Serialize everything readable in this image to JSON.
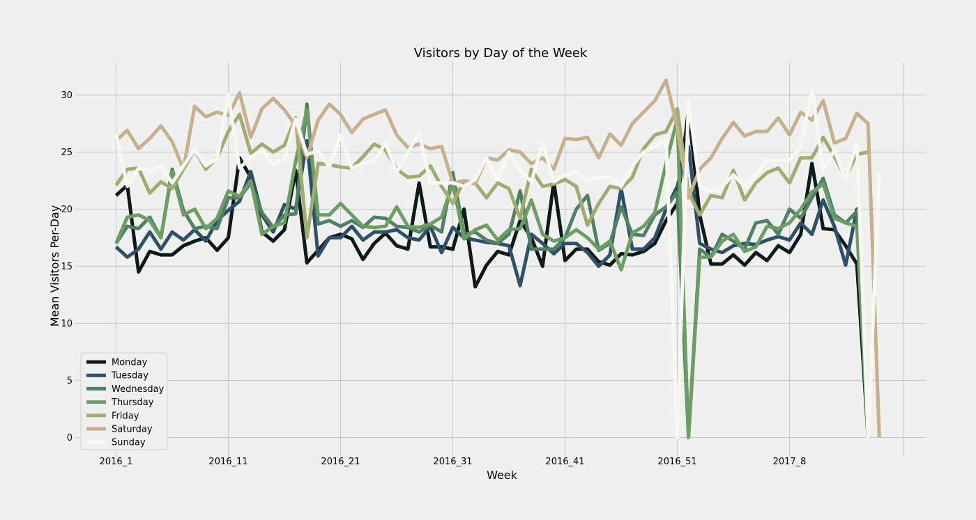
{
  "chart_data": {
    "type": "line",
    "title": "Visitors by Day of the Week",
    "xlabel": "Week",
    "ylabel": "Mean Visitors Per-Day",
    "ylim": [
      -1.5,
      32.5
    ],
    "yticks": [
      0,
      5,
      10,
      15,
      20,
      25,
      30
    ],
    "grid": true,
    "legend_position": "bottom-left",
    "x_ticks": [
      {
        "index": 0,
        "label": "2016_1"
      },
      {
        "index": 10,
        "label": "2016_11"
      },
      {
        "index": 20,
        "label": "2016_21"
      },
      {
        "index": 30,
        "label": "2016_31"
      },
      {
        "index": 40,
        "label": "2016_41"
      },
      {
        "index": 50,
        "label": "2016_51"
      },
      {
        "index": 60,
        "label": "2017_8"
      }
    ],
    "x_extra_grid": [
      70
    ],
    "x_range": [
      -3,
      72.5
    ],
    "series": [
      {
        "name": "Monday",
        "color": "#0d1a16",
        "values": [
          21.2,
          22.1,
          14.5,
          16.3,
          16.0,
          16.0,
          16.8,
          17.2,
          17.5,
          16.4,
          17.5,
          24.5,
          22.8,
          18.0,
          17.2,
          18.2,
          23.4,
          15.3,
          16.4,
          17.5,
          17.8,
          17.4,
          15.6,
          17.0,
          17.9,
          16.8,
          16.5,
          22.3,
          16.7,
          16.7,
          16.5,
          20.0,
          13.2,
          15.1,
          16.3,
          16.0,
          19.0,
          17.5,
          15.0,
          22.4,
          15.5,
          16.5,
          16.5,
          15.4,
          15.1,
          16.1,
          16.0,
          16.3,
          17.0,
          19.0,
          20.5,
          28.7,
          19.5,
          15.2,
          15.2,
          16.0,
          15.1,
          16.2,
          15.5,
          16.8,
          16.2,
          17.8,
          24.0,
          18.3,
          18.2,
          16.8,
          15.2,
          0.0
        ]
      },
      {
        "name": "Tuesday",
        "color": "#2e5068",
        "values": [
          16.7,
          15.8,
          16.5,
          18.0,
          16.5,
          18.0,
          17.3,
          18.2,
          17.2,
          19.0,
          19.9,
          20.7,
          23.3,
          19.5,
          18.0,
          20.4,
          20.0,
          26.0,
          15.9,
          17.5,
          17.5,
          18.5,
          17.3,
          18.0,
          18.0,
          18.2,
          17.5,
          17.3,
          18.5,
          16.2,
          18.4,
          17.5,
          17.3,
          17.1,
          17.0,
          16.8,
          13.3,
          17.8,
          17.0,
          16.1,
          17.0,
          17.0,
          16.2,
          15.0,
          16.0,
          21.8,
          16.5,
          16.5,
          17.5,
          20.0,
          22.0,
          25.5,
          17.0,
          16.5,
          16.2,
          16.8,
          17.0,
          16.9,
          17.3,
          17.6,
          17.3,
          18.8,
          17.8,
          20.8,
          18.5,
          15.1,
          20.0,
          0.0
        ]
      },
      {
        "name": "Wednesday",
        "color": "#4f8264",
        "values": [
          17.0,
          18.5,
          18.3,
          19.3,
          17.5,
          23.5,
          19.9,
          18.3,
          18.5,
          18.3,
          21.0,
          21.0,
          22.3,
          19.7,
          18.4,
          19.5,
          19.6,
          29.2,
          18.7,
          19.0,
          18.5,
          19.0,
          18.4,
          19.3,
          19.2,
          18.5,
          18.4,
          18.0,
          18.6,
          18.0,
          23.2,
          17.8,
          18.0,
          17.3,
          17.0,
          17.8,
          21.6,
          16.5,
          16.5,
          16.5,
          17.5,
          20.0,
          21.2,
          16.4,
          17.0,
          20.2,
          17.8,
          17.7,
          19.5,
          20.2,
          21.5,
          0.0,
          16.5,
          15.8,
          17.8,
          17.2,
          16.5,
          18.8,
          19.0,
          17.8,
          20.0,
          19.2,
          21.0,
          22.7,
          19.5,
          18.8,
          19.8,
          0.0
        ]
      },
      {
        "name": "Thursday",
        "color": "#6c9e64",
        "values": [
          17.0,
          19.3,
          19.5,
          19.0,
          17.5,
          23.3,
          19.5,
          20.0,
          18.3,
          19.2,
          21.6,
          21.1,
          22.5,
          17.8,
          18.5,
          18.8,
          24.2,
          28.7,
          19.5,
          19.5,
          20.5,
          19.5,
          18.5,
          18.4,
          18.5,
          20.2,
          18.5,
          18.4,
          18.7,
          19.3,
          22.3,
          17.4,
          18.2,
          18.6,
          17.3,
          18.2,
          18.3,
          20.8,
          17.8,
          17.2,
          17.5,
          18.2,
          17.5,
          16.5,
          17.2,
          14.7,
          17.9,
          18.5,
          19.7,
          24.0,
          27.9,
          0.0,
          15.8,
          15.8,
          17.2,
          17.8,
          16.3,
          16.7,
          18.5,
          18.3,
          18.8,
          20.0,
          21.5,
          22.2,
          19.2,
          18.8,
          18.5,
          0.0
        ]
      },
      {
        "name": "Friday",
        "color": "#a0ac70",
        "values": [
          22.1,
          23.5,
          23.6,
          21.4,
          22.4,
          21.8,
          23.5,
          25.2,
          23.5,
          24.5,
          26.8,
          28.3,
          24.9,
          25.7,
          25.0,
          25.6,
          28.0,
          17.5,
          24.0,
          23.9,
          23.7,
          23.6,
          24.6,
          25.7,
          25.2,
          23.5,
          22.8,
          22.9,
          23.8,
          22.0,
          20.5,
          22.5,
          22.3,
          21.0,
          22.3,
          21.8,
          19.2,
          23.5,
          22.0,
          22.2,
          22.6,
          22.0,
          18.6,
          20.5,
          22.0,
          21.8,
          22.8,
          25.3,
          26.5,
          26.8,
          28.8,
          21.5,
          19.5,
          21.2,
          21.0,
          23.4,
          20.8,
          22.3,
          23.2,
          23.6,
          22.3,
          24.5,
          24.5,
          26.3,
          24.6,
          22.8,
          24.8,
          25.0
        ]
      },
      {
        "name": "Saturday",
        "color": "#c7b08c",
        "values": [
          26.0,
          26.9,
          25.3,
          26.2,
          27.3,
          25.9,
          23.5,
          29.0,
          28.1,
          28.5,
          28.2,
          30.2,
          26.3,
          28.8,
          29.7,
          28.7,
          27.3,
          24.5,
          27.8,
          29.2,
          28.3,
          26.7,
          27.9,
          28.3,
          28.7,
          26.5,
          25.4,
          25.7,
          25.3,
          25.5,
          22.3,
          22.5,
          22.2,
          24.5,
          24.3,
          25.2,
          25.0,
          24.0,
          24.5,
          23.5,
          26.2,
          26.1,
          26.3,
          24.5,
          26.6,
          25.6,
          27.5,
          28.5,
          29.5,
          31.3,
          27.2,
          21.0,
          23.5,
          24.5,
          26.2,
          27.6,
          26.4,
          26.8,
          26.8,
          28.0,
          26.5,
          28.5,
          27.8,
          29.5,
          25.8,
          26.2,
          28.4,
          27.5,
          0.0
        ]
      },
      {
        "name": "Sunday",
        "color": "#f8f8f2",
        "values": [
          26.6,
          22.0,
          23.6,
          23.3,
          23.8,
          22.3,
          23.8,
          25.2,
          23.8,
          24.4,
          30.0,
          23.6,
          24.5,
          25.2,
          23.9,
          24.4,
          27.9,
          24.8,
          25.1,
          23.7,
          26.5,
          23.6,
          24.0,
          24.2,
          25.8,
          23.2,
          25.0,
          26.7,
          22.3,
          22.3,
          22.3,
          22.0,
          22.6,
          24.5,
          22.6,
          25.0,
          23.4,
          22.4,
          25.8,
          22.4,
          23.0,
          23.3,
          22.5,
          22.8,
          22.8,
          22.0,
          23.8,
          25.0,
          25.5,
          26.2,
          0.0,
          29.5,
          22.0,
          21.5,
          22.0,
          23.0,
          22.0,
          23.0,
          24.3,
          24.3,
          24.3,
          25.4,
          30.5,
          23.4,
          25.2,
          22.6,
          25.8,
          0.0,
          23.2
        ]
      }
    ]
  }
}
